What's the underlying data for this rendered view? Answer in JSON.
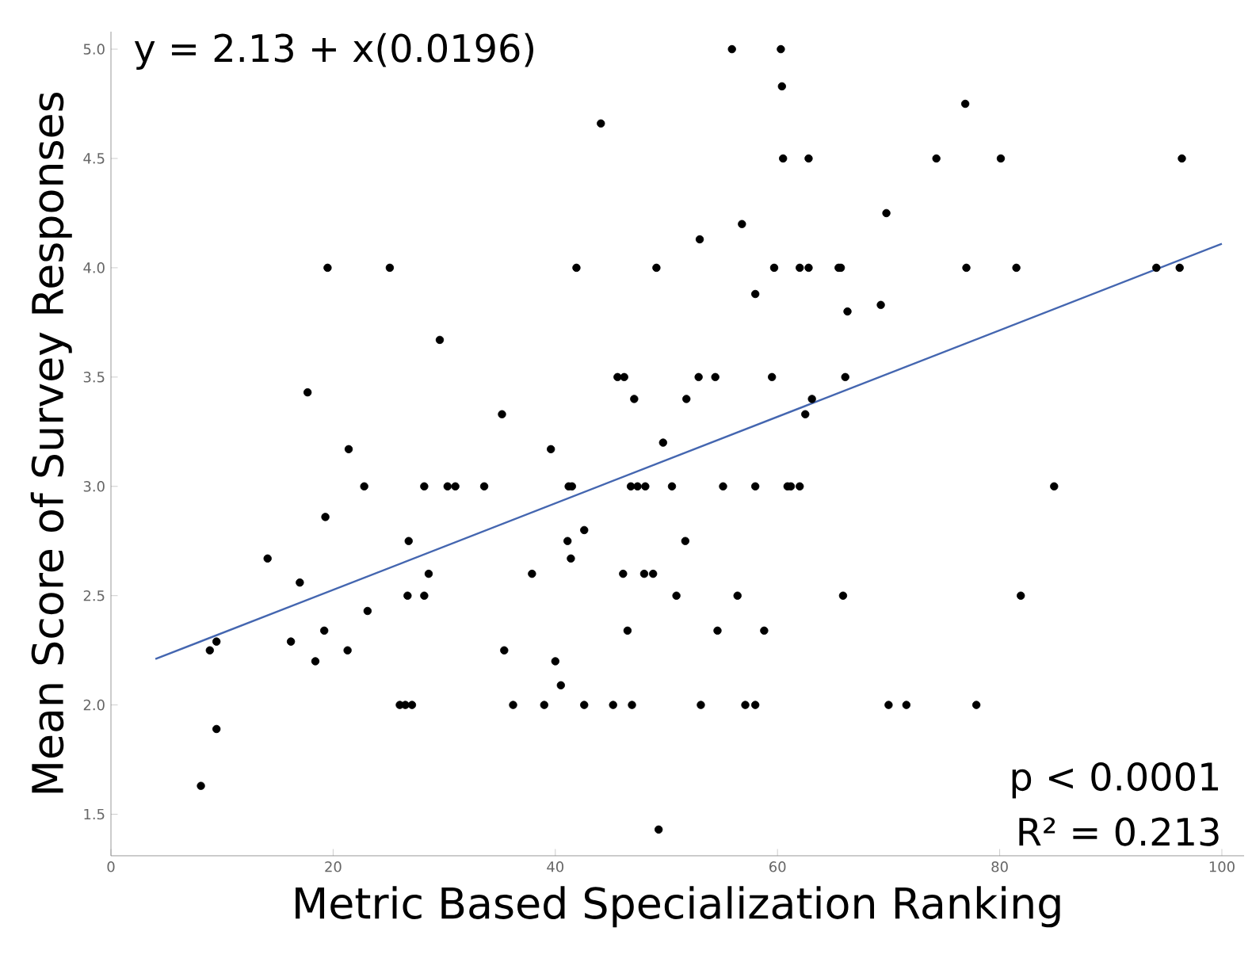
{
  "chart_data": {
    "type": "scatter",
    "xlabel": "Metric Based Specialization Ranking",
    "ylabel": "Mean Score of Survey Responses",
    "annotations": [
      "y = 2.13 + x(0.0196)",
      "p < 0.0001",
      "R² = 0.213"
    ],
    "xlim": [
      0,
      102
    ],
    "ylim": [
      1.31,
      5.08
    ],
    "xticks": [
      0,
      20,
      40,
      60,
      80,
      100
    ],
    "yticks": [
      {
        "value": 1.5,
        "label": "1.5"
      },
      {
        "value": 2,
        "label": "2.0"
      },
      {
        "value": 2.5,
        "label": "2.5"
      },
      {
        "value": 3,
        "label": "3.0"
      },
      {
        "value": 3.5,
        "label": "3.5"
      },
      {
        "value": 4,
        "label": "4.0"
      },
      {
        "value": 4.5,
        "label": "4.5"
      },
      {
        "value": 5,
        "label": "5.0"
      }
    ],
    "grid": false,
    "series": [
      {
        "color": "#000000",
        "marker": "circle",
        "x": [
          8.1,
          8.9,
          9.5,
          9.5,
          14.1,
          17.0,
          16.2,
          17.7,
          19.5,
          19.3,
          18.4,
          19.2,
          21.4,
          22.8,
          21.3,
          23.1,
          25.1,
          26.0,
          26.5,
          27.1,
          26.8,
          26.7,
          28.2,
          28.6,
          28.2,
          29.6,
          30.3,
          31.0,
          33.6,
          55.9,
          60.3,
          60.4,
          44.1,
          60.5,
          62.8,
          56.8,
          53.0,
          41.9,
          49.1,
          59.7,
          62.0,
          62.8,
          65.5,
          65.7,
          58.0,
          66.3,
          45.6,
          46.2,
          52.9,
          54.4,
          59.5,
          66.1,
          47.1,
          51.8,
          63.1,
          62.5,
          35.2,
          39.6,
          49.7,
          41.2,
          41.5,
          46.8,
          47.4,
          48.1,
          50.5,
          55.1,
          58.0,
          60.9,
          61.2,
          62.0,
          42.6,
          41.1,
          41.4,
          51.7,
          37.9,
          46.1,
          48.0,
          48.8,
          50.9,
          56.4,
          65.9,
          46.5,
          54.6,
          58.8,
          35.4,
          40.0,
          40.5,
          36.2,
          39.0,
          42.6,
          45.2,
          46.9,
          53.1,
          57.1,
          58.0,
          49.3,
          76.9,
          74.3,
          80.1,
          96.4,
          69.8,
          77.0,
          81.5,
          94.1,
          96.2,
          69.3,
          84.9,
          81.9,
          70.0,
          71.6,
          77.9
        ],
        "values": [
          1.63,
          2.25,
          2.29,
          1.89,
          2.67,
          2.56,
          2.29,
          3.43,
          4.0,
          2.86,
          2.2,
          2.34,
          3.17,
          3.0,
          2.25,
          2.43,
          4.0,
          2.0,
          2.0,
          2.0,
          2.75,
          2.5,
          2.5,
          2.6,
          3.0,
          3.67,
          3.0,
          3.0,
          3.0,
          5.0,
          5.0,
          4.83,
          4.66,
          4.5,
          4.5,
          4.2,
          4.13,
          4.0,
          4.0,
          4.0,
          4.0,
          4.0,
          4.0,
          4.0,
          3.88,
          3.8,
          3.5,
          3.5,
          3.5,
          3.5,
          3.5,
          3.5,
          3.4,
          3.4,
          3.4,
          3.33,
          3.33,
          3.17,
          3.2,
          3.0,
          3.0,
          3.0,
          3.0,
          3.0,
          3.0,
          3.0,
          3.0,
          3.0,
          3.0,
          3.0,
          2.8,
          2.75,
          2.67,
          2.75,
          2.6,
          2.6,
          2.6,
          2.6,
          2.5,
          2.5,
          2.5,
          2.34,
          2.34,
          2.34,
          2.25,
          2.2,
          2.09,
          2.0,
          2.0,
          2.0,
          2.0,
          2.0,
          2.0,
          2.0,
          2.0,
          1.43,
          4.75,
          4.5,
          4.5,
          4.5,
          4.25,
          4.0,
          4.0,
          4.0,
          4.0,
          3.83,
          3.0,
          2.5,
          2.0,
          2.0,
          2.0
        ]
      },
      {
        "type": "line",
        "color": "#4466b0",
        "line_style": "solid",
        "x": [
          4,
          100
        ],
        "values": [
          2.21,
          4.11
        ]
      }
    ]
  }
}
